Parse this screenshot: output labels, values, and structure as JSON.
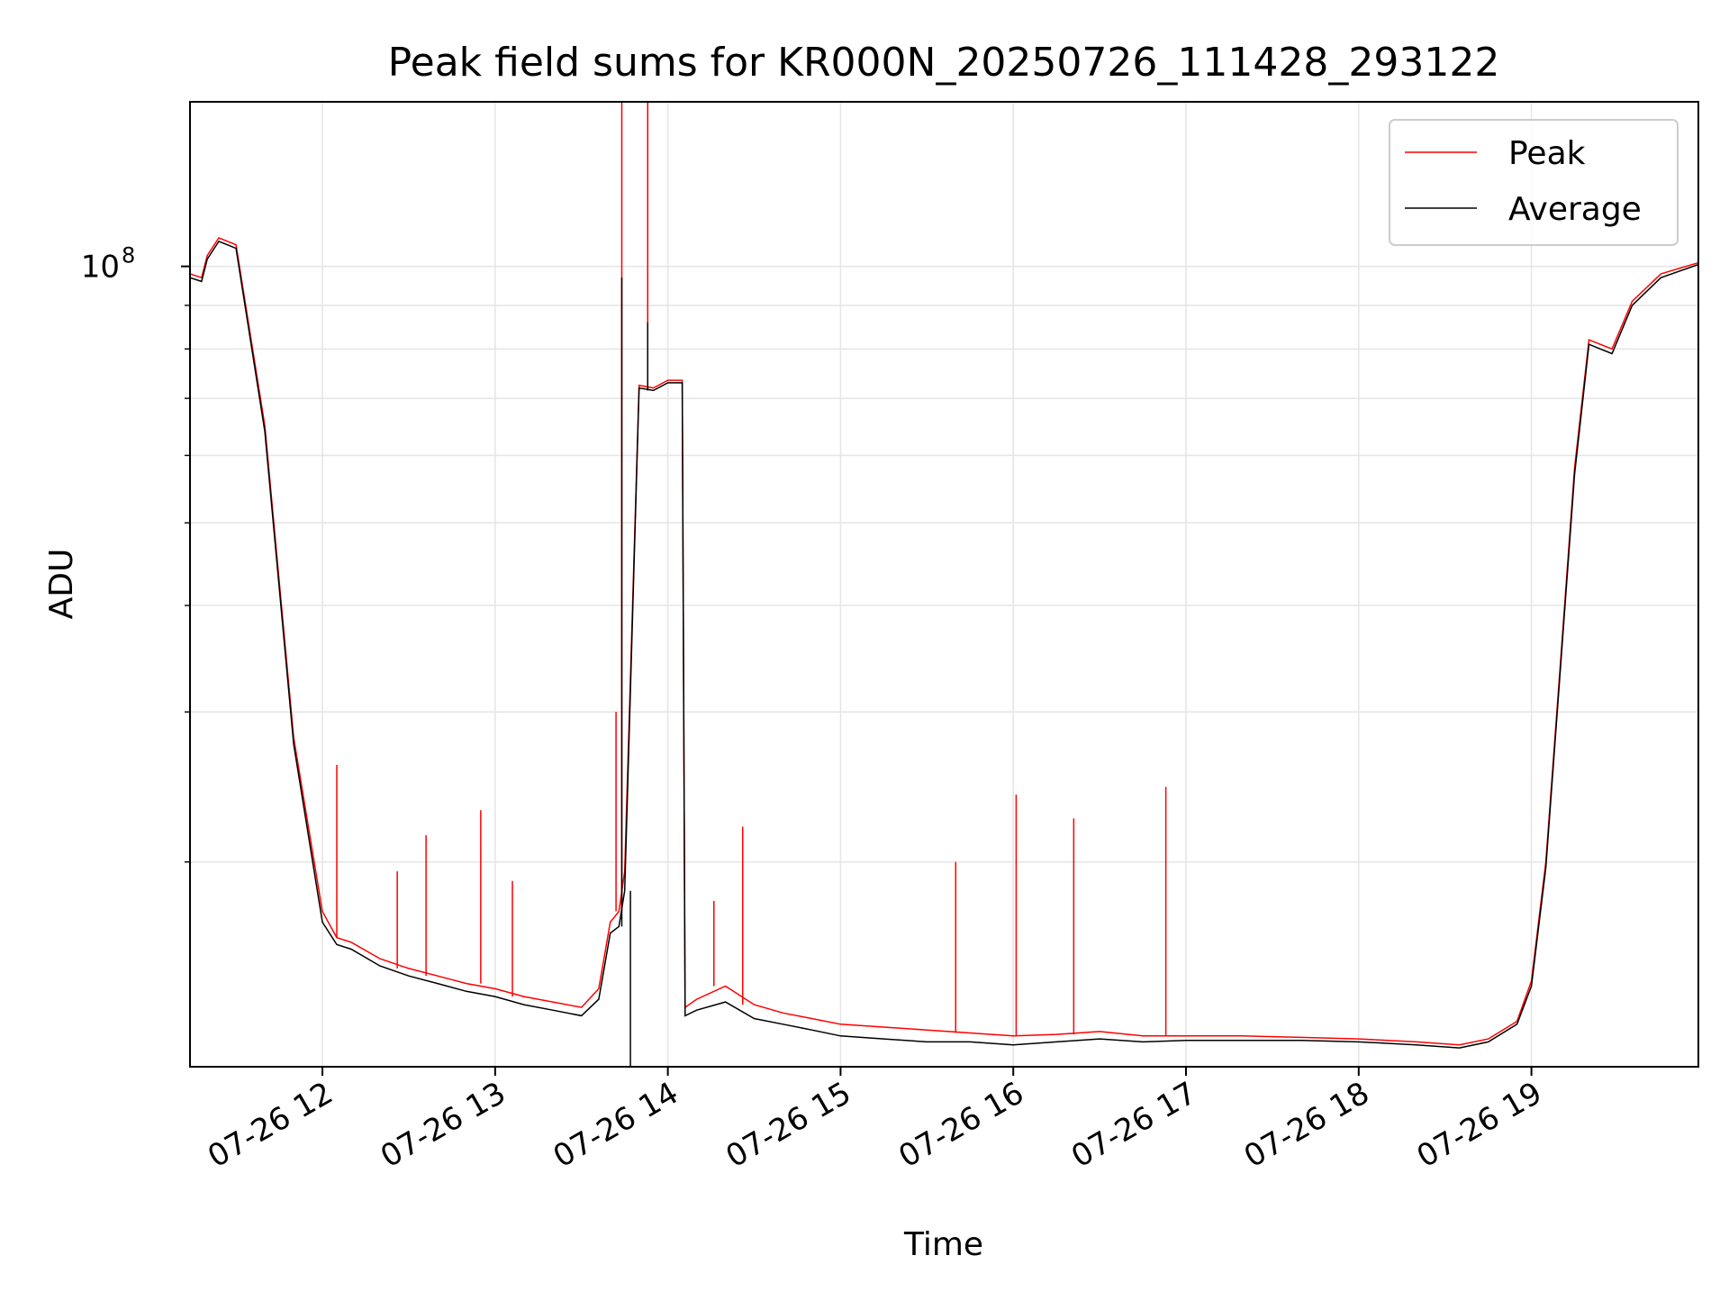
{
  "chart_data": {
    "type": "line",
    "title": "Peak field sums for KR000N_20250726_111428_293122",
    "xlabel": "Time",
    "ylabel": "ADU",
    "y_scale": "log",
    "y_tick_label": {
      "base": "10",
      "exp": "8",
      "value": 100000000
    },
    "xlim": [
      "07-26 11:14",
      "07-26 19:58"
    ],
    "ylim": [
      11500000,
      156000000
    ],
    "x_tick_labels": [
      "07-26 12",
      "07-26 13",
      "07-26 14",
      "07-26 15",
      "07-26 16",
      "07-26 17",
      "07-26 18",
      "07-26 19"
    ],
    "grid": true,
    "legend": {
      "position": "top-right",
      "entries": [
        "Peak",
        "Average"
      ]
    },
    "colors": {
      "Peak": "#ff0000",
      "Average": "#000000",
      "grid": "#e6e6e6"
    },
    "series": [
      {
        "name": "Peak",
        "x": [
          "07-26 11:14",
          "07-26 11:18",
          "07-26 11:20",
          "07-26 11:24",
          "07-26 11:30",
          "07-26 11:40",
          "07-26 11:50",
          "07-26 12:00",
          "07-26 12:05",
          "07-26 12:10",
          "07-26 12:20",
          "07-26 12:30",
          "07-26 12:40",
          "07-26 12:50",
          "07-26 13:00",
          "07-26 13:10",
          "07-26 13:20",
          "07-26 13:30",
          "07-26 13:36",
          "07-26 13:40",
          "07-26 13:43",
          "07-26 13:45",
          "07-26 13:50",
          "07-26 13:55",
          "07-26 14:00",
          "07-26 14:05",
          "07-26 14:06",
          "07-26 14:10",
          "07-26 14:20",
          "07-26 14:30",
          "07-26 14:40",
          "07-26 14:50",
          "07-26 15:00",
          "07-26 15:15",
          "07-26 15:30",
          "07-26 15:45",
          "07-26 16:00",
          "07-26 16:15",
          "07-26 16:30",
          "07-26 16:45",
          "07-26 17:00",
          "07-26 17:20",
          "07-26 17:40",
          "07-26 18:00",
          "07-26 18:20",
          "07-26 18:35",
          "07-26 18:45",
          "07-26 18:55",
          "07-26 19:00",
          "07-26 19:05",
          "07-26 19:10",
          "07-26 19:15",
          "07-26 19:20",
          "07-26 19:28",
          "07-26 19:35",
          "07-26 19:45",
          "07-26 19:58"
        ],
        "y": [
          98000000,
          97000000,
          103000000,
          108000000,
          106000000,
          65000000,
          28000000,
          17500000,
          16300000,
          16100000,
          15400000,
          15000000,
          14700000,
          14400000,
          14200000,
          13900000,
          13700000,
          13500000,
          14200000,
          17000000,
          17500000,
          19500000,
          72500000,
          72000000,
          73500000,
          73500000,
          13500000,
          13800000,
          14300000,
          13600000,
          13300000,
          13100000,
          12900000,
          12800000,
          12700000,
          12600000,
          12500000,
          12550000,
          12650000,
          12500000,
          12500000,
          12500000,
          12450000,
          12400000,
          12300000,
          12200000,
          12400000,
          13000000,
          14500000,
          20000000,
          34000000,
          58000000,
          82000000,
          80000000,
          91000000,
          98000000,
          101000000
        ]
      },
      {
        "name": "Average",
        "x": [
          "07-26 11:14",
          "07-26 11:18",
          "07-26 11:20",
          "07-26 11:24",
          "07-26 11:30",
          "07-26 11:40",
          "07-26 11:50",
          "07-26 12:00",
          "07-26 12:05",
          "07-26 12:10",
          "07-26 12:20",
          "07-26 12:30",
          "07-26 12:40",
          "07-26 12:50",
          "07-26 13:00",
          "07-26 13:10",
          "07-26 13:20",
          "07-26 13:30",
          "07-26 13:36",
          "07-26 13:40",
          "07-26 13:43",
          "07-26 13:45",
          "07-26 13:50",
          "07-26 13:55",
          "07-26 14:00",
          "07-26 14:05",
          "07-26 14:06",
          "07-26 14:10",
          "07-26 14:20",
          "07-26 14:30",
          "07-26 14:40",
          "07-26 14:50",
          "07-26 15:00",
          "07-26 15:15",
          "07-26 15:30",
          "07-26 15:45",
          "07-26 16:00",
          "07-26 16:15",
          "07-26 16:30",
          "07-26 16:45",
          "07-26 17:00",
          "07-26 17:20",
          "07-26 17:40",
          "07-26 18:00",
          "07-26 18:20",
          "07-26 18:35",
          "07-26 18:45",
          "07-26 18:55",
          "07-26 19:00",
          "07-26 19:05",
          "07-26 19:10",
          "07-26 19:15",
          "07-26 19:20",
          "07-26 19:28",
          "07-26 19:35",
          "07-26 19:45",
          "07-26 19:58"
        ],
        "y": [
          97000000,
          96000000,
          102000000,
          107000000,
          105000000,
          64000000,
          27500000,
          17000000,
          16000000,
          15800000,
          15100000,
          14700000,
          14400000,
          14100000,
          13900000,
          13600000,
          13400000,
          13200000,
          13800000,
          16500000,
          16800000,
          18500000,
          72000000,
          71500000,
          73000000,
          73000000,
          13200000,
          13400000,
          13700000,
          13100000,
          12900000,
          12700000,
          12500000,
          12400000,
          12300000,
          12300000,
          12200000,
          12300000,
          12400000,
          12300000,
          12350000,
          12350000,
          12350000,
          12300000,
          12200000,
          12100000,
          12300000,
          12900000,
          14300000,
          19700000,
          33500000,
          57000000,
          81000000,
          79000000,
          90000000,
          97000000,
          100500000
        ]
      }
    ],
    "spikes": [
      {
        "series": "Peak",
        "x": "07-26 12:05",
        "y": 26000000
      },
      {
        "series": "Peak",
        "x": "07-26 12:26",
        "y": 19500000
      },
      {
        "series": "Peak",
        "x": "07-26 12:36",
        "y": 21500000
      },
      {
        "series": "Peak",
        "x": "07-26 12:55",
        "y": 23000000
      },
      {
        "series": "Peak",
        "x": "07-26 13:06",
        "y": 19000000
      },
      {
        "series": "Peak",
        "x": "07-26 13:42",
        "y": 30000000
      },
      {
        "series": "Peak",
        "x": "07-26 13:44",
        "y": 156000000
      },
      {
        "series": "Peak",
        "x": "07-26 13:53",
        "y": 156000000
      },
      {
        "series": "Peak",
        "x": "07-26 14:16",
        "y": 18000000
      },
      {
        "series": "Peak",
        "x": "07-26 14:26",
        "y": 22000000
      },
      {
        "series": "Peak",
        "x": "07-26 15:40",
        "y": 20000000
      },
      {
        "series": "Peak",
        "x": "07-26 16:01",
        "y": 24000000
      },
      {
        "series": "Peak",
        "x": "07-26 16:21",
        "y": 22500000
      },
      {
        "series": "Peak",
        "x": "07-26 16:53",
        "y": 24500000
      },
      {
        "series": "Average",
        "x": "07-26 13:44",
        "y": 97000000
      },
      {
        "series": "Average",
        "x": "07-26 13:47",
        "y": 11500000
      },
      {
        "series": "Average",
        "x": "07-26 13:53",
        "y": 86000000
      }
    ]
  }
}
